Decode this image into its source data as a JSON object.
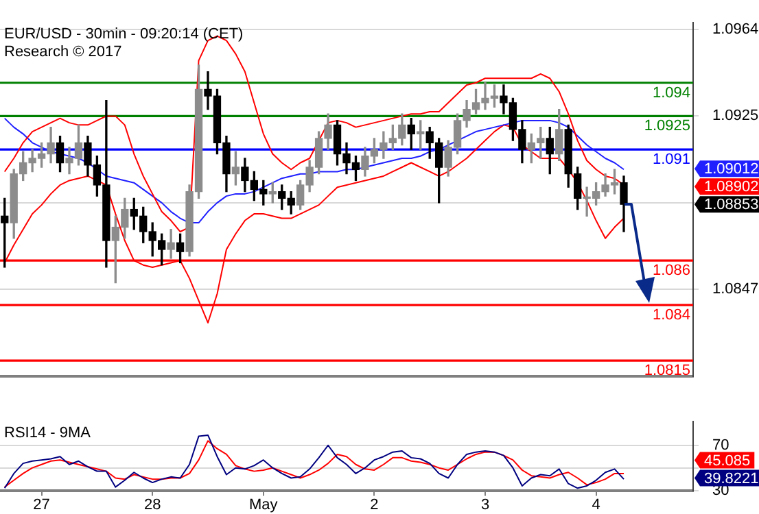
{
  "chart_data": [
    {
      "type": "candlestick",
      "title": "EUR/USD - 30min - 09:20:14 (CET)",
      "subtitle": "Research © 2017",
      "categories": [
        null,
        null,
        null,
        null,
        null,
        null,
        null,
        null,
        null,
        null,
        null,
        null,
        null,
        null,
        null,
        null,
        null,
        null,
        null,
        null,
        null,
        null,
        null,
        null,
        null,
        null,
        null,
        null,
        null,
        null,
        null,
        null,
        null,
        null,
        null,
        null,
        null,
        null,
        null,
        null,
        null,
        null,
        null,
        null,
        null,
        null,
        null,
        null,
        null,
        null,
        null,
        null,
        null,
        null,
        null,
        null,
        null,
        null,
        null,
        null,
        null,
        null,
        null,
        null,
        null,
        null,
        null,
        null,
        null,
        null,
        null,
        null,
        null,
        null,
        null
      ],
      "ohlc": [
        [
          1.088,
          1.0888,
          1.0857,
          1.0877
        ],
        [
          1.0877,
          1.0901,
          1.087,
          1.0899
        ],
        [
          1.0899,
          1.0909,
          1.0896,
          1.0904
        ],
        [
          1.0904,
          1.091,
          1.09,
          1.0906
        ],
        [
          1.0906,
          1.0913,
          1.0902,
          1.0908
        ],
        [
          1.0908,
          1.092,
          1.0904,
          1.0913
        ],
        [
          1.0913,
          1.0916,
          1.09,
          1.0904
        ],
        [
          1.0904,
          1.0911,
          1.0899,
          1.0906
        ],
        [
          1.0906,
          1.0921,
          1.0903,
          1.0913
        ],
        [
          1.0913,
          1.0916,
          1.0898,
          1.0903
        ],
        [
          1.0903,
          1.0907,
          1.0889,
          1.0894
        ],
        [
          1.0894,
          1.0932,
          1.0857,
          1.0869
        ],
        [
          1.0869,
          1.088,
          1.085,
          1.0875
        ],
        [
          1.0875,
          1.0888,
          1.087,
          1.0883
        ],
        [
          1.0883,
          1.0888,
          1.0874,
          1.088
        ],
        [
          1.088,
          1.0884,
          1.0868,
          1.0873
        ],
        [
          1.0873,
          1.0877,
          1.0862,
          1.0869
        ],
        [
          1.0869,
          1.0872,
          1.0858,
          1.0865
        ],
        [
          1.0865,
          1.0874,
          1.0861,
          1.0868
        ],
        [
          1.0868,
          1.0872,
          1.0859,
          1.0864
        ],
        [
          1.0864,
          1.0894,
          1.0862,
          1.0891
        ],
        [
          1.0891,
          1.0948,
          1.0888,
          1.0937
        ],
        [
          1.0937,
          1.0945,
          1.0928,
          1.0934
        ],
        [
          1.0934,
          1.0937,
          1.0908,
          1.0913
        ],
        [
          1.0913,
          1.0916,
          1.0891,
          1.0899
        ],
        [
          1.0899,
          1.0909,
          1.0894,
          1.0902
        ],
        [
          1.0902,
          1.0906,
          1.0891,
          1.0896
        ],
        [
          1.0896,
          1.09,
          1.0887,
          1.0892
        ],
        [
          1.0892,
          1.0896,
          1.0885,
          1.089
        ],
        [
          1.089,
          1.0895,
          1.0886,
          1.0891
        ],
        [
          1.0891,
          1.0894,
          1.0883,
          1.0888
        ],
        [
          1.0888,
          1.0891,
          1.0881,
          1.0885
        ],
        [
          1.0885,
          1.0896,
          1.0883,
          1.0894
        ],
        [
          1.0894,
          1.0905,
          1.0891,
          1.0902
        ],
        [
          1.0902,
          1.0918,
          1.0899,
          1.0915
        ],
        [
          1.0915,
          1.0926,
          1.091,
          1.0921
        ],
        [
          1.0921,
          1.0923,
          1.0903,
          1.0908
        ],
        [
          1.0908,
          1.0913,
          1.0899,
          1.0904
        ],
        [
          1.0904,
          1.0907,
          1.0896,
          1.0901
        ],
        [
          1.0901,
          1.0911,
          1.0898,
          1.0907
        ],
        [
          1.0907,
          1.0915,
          1.0904,
          1.091
        ],
        [
          1.091,
          1.0918,
          1.0906,
          1.0913
        ],
        [
          1.0913,
          1.0921,
          1.091,
          1.0915
        ],
        [
          1.0915,
          1.0926,
          1.0912,
          1.0921
        ],
        [
          1.0921,
          1.0924,
          1.091,
          1.0917
        ],
        [
          1.0917,
          1.0923,
          1.091,
          1.0918
        ],
        [
          1.0918,
          1.092,
          1.0906,
          1.0913
        ],
        [
          1.0913,
          1.0915,
          1.0886,
          1.0902
        ],
        [
          1.0902,
          1.0914,
          1.0898,
          1.0911
        ],
        [
          1.0911,
          1.0926,
          1.0908,
          1.0923
        ],
        [
          1.0923,
          1.0932,
          1.092,
          1.0928
        ],
        [
          1.0928,
          1.0937,
          1.0926,
          1.0931
        ],
        [
          1.0931,
          1.094,
          1.0928,
          1.0933
        ],
        [
          1.0933,
          1.0939,
          1.0929,
          1.0934
        ],
        [
          1.0934,
          1.0939,
          1.0926,
          1.0931
        ],
        [
          1.0931,
          1.0933,
          1.0914,
          1.0919
        ],
        [
          1.0919,
          1.0923,
          1.0904,
          1.091
        ],
        [
          1.091,
          1.0917,
          1.0904,
          1.0913
        ],
        [
          1.0913,
          1.092,
          1.0906,
          1.0915
        ],
        [
          1.0915,
          1.092,
          1.0899,
          1.0908
        ],
        [
          1.0908,
          1.0928,
          1.0905,
          1.0919
        ],
        [
          1.0919,
          1.0921,
          1.0893,
          1.0899
        ],
        [
          1.0899,
          1.0902,
          1.0883,
          1.0888
        ],
        [
          1.0888,
          1.0893,
          1.088,
          1.0888
        ],
        [
          1.0888,
          1.0895,
          1.0885,
          1.0891
        ],
        [
          1.0891,
          1.0899,
          1.0889,
          1.0894
        ],
        [
          1.0894,
          1.0901,
          1.089,
          1.0895
        ],
        [
          1.0895,
          1.0898,
          1.0873,
          1.08853
        ],
        null,
        null,
        null,
        null,
        null,
        null,
        null
      ],
      "series": [
        {
          "type": "line",
          "color": "#ff0000",
          "values": [
            1.09,
            1.0906,
            1.0913,
            1.0918,
            1.092,
            1.0922,
            1.0924,
            1.0922,
            1.0921,
            1.0921,
            1.0923,
            1.0925,
            1.0925,
            1.0921,
            1.0908,
            1.0898,
            1.089,
            1.0882,
            1.0878,
            1.0873,
            1.0875,
            1.095,
            1.0959,
            1.0961,
            1.0959,
            1.0953,
            1.0945,
            1.0931,
            1.0917,
            1.0908,
            1.0904,
            1.0901,
            1.0904,
            1.0906,
            1.0914,
            1.0922,
            1.0923,
            1.0922,
            1.092,
            1.0921,
            1.0922,
            1.0923,
            1.0924,
            1.0925,
            1.0926,
            1.0926,
            1.0927,
            1.0927,
            1.0931,
            1.0935,
            1.0939,
            1.094,
            1.0942,
            1.0942,
            1.0942,
            1.0942,
            1.0942,
            1.0942,
            1.0944,
            1.0942,
            1.0936,
            1.0926,
            1.0914,
            1.0905,
            1.0901,
            1.0898,
            1.0897,
            1.0894,
            null,
            null,
            null,
            null,
            null,
            null,
            null
          ]
        },
        {
          "type": "line",
          "color": "#2020ff",
          "values": [
            1.0924,
            1.092,
            1.0917,
            1.0913,
            1.0911,
            1.0909,
            1.0908,
            1.0907,
            1.0906,
            1.0904,
            1.0901,
            1.0898,
            1.0897,
            1.0896,
            1.0895,
            1.0892,
            1.0889,
            1.0886,
            1.0882,
            1.0879,
            1.0877,
            1.0877,
            1.0882,
            1.0886,
            1.0889,
            1.089,
            1.089,
            1.0891,
            1.0893,
            1.0895,
            1.0897,
            1.0898,
            1.0899,
            1.0899,
            1.09,
            1.09,
            1.09,
            1.0901,
            1.0901,
            1.0902,
            1.0903,
            1.0904,
            1.0905,
            1.0906,
            1.0906,
            1.0907,
            1.0909,
            1.091,
            1.0912,
            1.0914,
            1.0916,
            1.0918,
            1.0919,
            1.092,
            1.0921,
            1.0922,
            1.0923,
            1.0923,
            1.0923,
            1.0923,
            1.0922,
            1.092,
            1.0916,
            1.0912,
            1.0909,
            1.0906,
            1.0904,
            1.0901,
            null,
            null,
            null,
            null,
            null,
            null,
            null
          ]
        },
        {
          "type": "line",
          "color": "#ff0000",
          "values": [
            1.0859,
            1.0867,
            1.0874,
            1.0881,
            1.0885,
            1.089,
            1.0894,
            1.0896,
            1.0897,
            1.0898,
            1.0896,
            1.0894,
            1.0881,
            1.0869,
            1.086,
            1.0858,
            1.0857,
            1.0858,
            1.0859,
            1.086,
            1.0852,
            1.0842,
            1.0832,
            1.0845,
            1.0865,
            1.0872,
            1.0878,
            1.0881,
            1.0881,
            1.088,
            1.0879,
            1.0879,
            1.0881,
            1.0883,
            1.0885,
            1.0889,
            1.0893,
            1.0894,
            1.0895,
            1.0896,
            1.0897,
            1.0898,
            1.09,
            1.0902,
            1.0904,
            1.0902,
            1.09,
            1.0898,
            1.09,
            1.0903,
            1.0906,
            1.091,
            1.0914,
            1.0918,
            1.0921,
            1.092,
            1.0912,
            1.0909,
            1.0906,
            1.0906,
            1.0906,
            1.0901,
            1.0895,
            1.0887,
            1.0878,
            1.087,
            1.0875,
            1.0879,
            null,
            null,
            null,
            null,
            null,
            null,
            null
          ]
        }
      ],
      "ref_lines": [
        {
          "axis": "y",
          "value": 1.094,
          "label": "1.094",
          "color": "#008000"
        },
        {
          "axis": "y",
          "value": 1.0925,
          "label": "1.0925",
          "color": "#008000"
        },
        {
          "axis": "y",
          "value": 1.091,
          "label": "1.091",
          "color": "#0000ff"
        },
        {
          "axis": "y",
          "value": 1.086,
          "label": "1.086",
          "color": "#ff0000"
        },
        {
          "axis": "y",
          "value": 1.084,
          "label": "1.084",
          "color": "#ff0000"
        },
        {
          "axis": "y",
          "value": 1.0815,
          "label": "1.0815",
          "color": "#ff0000"
        }
      ],
      "annotations": [
        "1.09012",
        "1.08902",
        "1.08853"
      ],
      "ylim": [
        1.0808,
        1.0967
      ],
      "yticks": [
        1.0964,
        1.0925,
        {
          "value": 1.0886,
          "label": null
        },
        1.0847
      ],
      "grid": "y",
      "tick_labels": "y"
    },
    {
      "type": "line",
      "title": "RSI14 - 9MA",
      "categories": [
        null,
        null,
        null,
        null,
        "27",
        null,
        null,
        null,
        null,
        null,
        null,
        null,
        null,
        null,
        null,
        null,
        "28",
        null,
        null,
        null,
        null,
        null,
        null,
        null,
        null,
        null,
        null,
        null,
        "May",
        null,
        null,
        null,
        null,
        null,
        null,
        null,
        null,
        null,
        null,
        null,
        "2",
        null,
        null,
        null,
        null,
        null,
        null,
        null,
        null,
        null,
        null,
        null,
        "3",
        null,
        null,
        null,
        null,
        null,
        null,
        null,
        null,
        null,
        null,
        null,
        "4",
        null,
        null,
        null,
        null,
        null,
        null,
        null,
        null,
        null,
        null
      ],
      "series": [
        {
          "color": "#000080",
          "values": [
            32,
            45,
            54,
            56,
            57,
            58,
            60,
            53,
            56,
            51,
            47,
            47,
            33,
            39,
            46,
            41,
            37,
            40,
            42,
            41,
            53,
            78,
            79,
            60,
            44,
            50,
            49,
            52,
            57,
            50,
            45,
            41,
            42,
            49,
            59,
            70,
            59,
            53,
            45,
            50,
            57,
            60,
            64,
            65,
            59,
            58,
            54,
            45,
            41,
            53,
            62,
            64,
            65,
            64,
            61,
            50,
            34,
            41,
            44,
            43,
            49,
            36,
            32,
            34,
            39,
            46,
            49,
            40,
            null,
            null,
            null,
            null,
            null,
            null,
            null
          ]
        },
        {
          "color": "#ff0000",
          "values": [
            33,
            39,
            45,
            50,
            53,
            56,
            57,
            55,
            53,
            51,
            49,
            47,
            41,
            40,
            44,
            42,
            40,
            40,
            41,
            41,
            45,
            57,
            74,
            67,
            62,
            52,
            49,
            47,
            48,
            50,
            47,
            44,
            41,
            44,
            48,
            54,
            62,
            60,
            53,
            49,
            48,
            53,
            59,
            59,
            56,
            55,
            53,
            50,
            48,
            53,
            58,
            62,
            64,
            64,
            61,
            57,
            48,
            43,
            42,
            41,
            44,
            46,
            41,
            35,
            37,
            40,
            45,
            45,
            null,
            null,
            null,
            null,
            null,
            null,
            null
          ]
        }
      ],
      "annotations": [
        "45.085",
        "39.8221"
      ],
      "ylim": [
        30,
        91
      ],
      "yticks": [
        70,
        {
          "value": 50,
          "label": null
        },
        30
      ],
      "grid": "y"
    }
  ]
}
